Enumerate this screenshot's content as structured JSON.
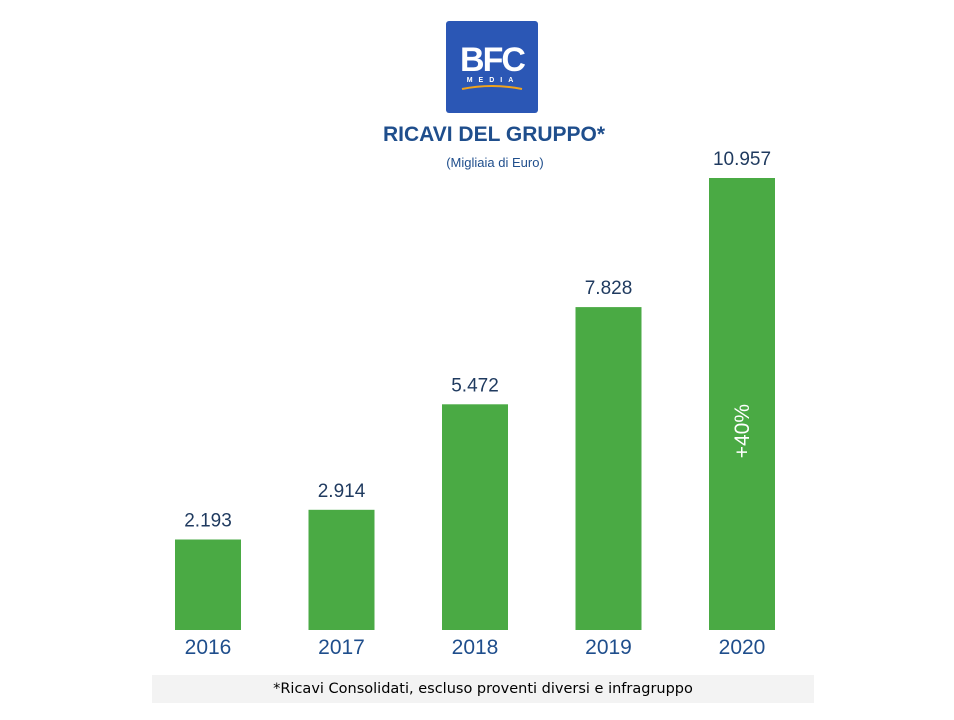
{
  "logo": {
    "text": "BFC",
    "subtext": "MEDIA",
    "background_color": "#2b57b5"
  },
  "chart_data": {
    "type": "bar",
    "title": "RICAVI DEL GRUPPO*",
    "subtitle": "(Migliaia di Euro)",
    "categories": [
      "2016",
      "2017",
      "2018",
      "2019",
      "2020"
    ],
    "values": [
      2193,
      2914,
      5472,
      7828,
      10957
    ],
    "value_labels": [
      "2.193",
      "2.914",
      "5.472",
      "7.828",
      "10.957"
    ],
    "annotation": "+40%",
    "ylim": [
      0,
      10957
    ],
    "bar_color": "#4aaa44",
    "label_color": "#1f3a5f",
    "category_label_color": "#1f4e8c",
    "grid": false,
    "legend": false
  },
  "footnote": "*Ricavi Consolidati, escluso proventi diversi e infragruppo"
}
